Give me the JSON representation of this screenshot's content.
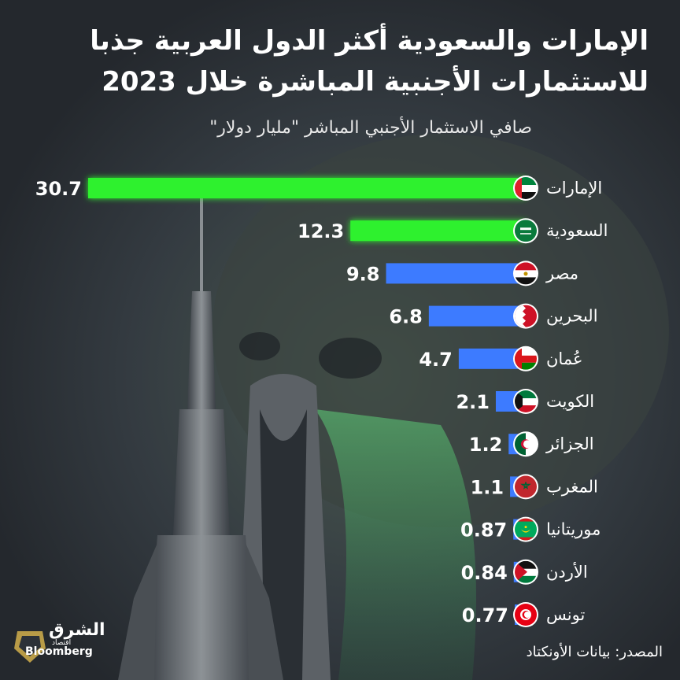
{
  "title_line1": "الإمارات والسعودية أكثر الدول العربية جذبا",
  "title_line2": "للاستثمارات الأجنبية  المباشرة خلال 2023",
  "subtitle": "صافي الاستثمار الأجنبي المباشر \"مليار دولار\"",
  "source": "المصدر: بيانات الأونكتاد",
  "logo": {
    "name_ar": "الشرق",
    "sub_ar": "اقتصاد",
    "partner": "Bloomberg"
  },
  "colors": {
    "highlight": "#2ef12e",
    "default": "#3d7bff",
    "background": "#2c3138"
  },
  "chart_data": {
    "type": "bar",
    "orientation": "horizontal",
    "categories": [
      "الإمارات",
      "السعودية",
      "مصر",
      "البحرين",
      "عُمان",
      "الكويت",
      "الجزائر",
      "المغرب",
      "موريتانيا",
      "الأردن",
      "تونس"
    ],
    "values": [
      30.7,
      12.3,
      9.8,
      6.8,
      4.7,
      2.1,
      1.2,
      1.1,
      0.87,
      0.84,
      0.77
    ],
    "value_labels": [
      "30.7",
      "12.3",
      "9.8",
      "6.8",
      "4.7",
      "2.1",
      "1.2",
      "1.1",
      "0.87",
      "0.84",
      "0.77"
    ],
    "highlighted": [
      "الإمارات",
      "السعودية"
    ],
    "flag_icons": [
      "uae-flag-icon",
      "saudi-flag-icon",
      "egypt-flag-icon",
      "bahrain-flag-icon",
      "oman-flag-icon",
      "kuwait-flag-icon",
      "algeria-flag-icon",
      "morocco-flag-icon",
      "mauritania-flag-icon",
      "jordan-flag-icon",
      "tunisia-flag-icon"
    ],
    "unit": "مليار دولار",
    "xlim": [
      0,
      30.7
    ],
    "grid": false,
    "legend": "none"
  }
}
